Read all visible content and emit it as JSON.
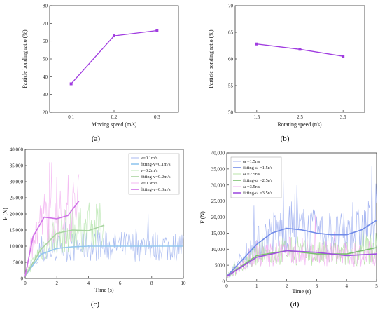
{
  "chart_data": [
    {
      "type": "line",
      "caption": "(a)",
      "xlabel": "Moving speed (m/s)",
      "ylabel": "Particle bonding ratio (%)",
      "xlim": [
        0.05,
        0.35
      ],
      "ylim": [
        20,
        80
      ],
      "xticks": [
        "0.1",
        "0.2",
        "0.3"
      ],
      "yticks": [
        "20",
        "30",
        "40",
        "50",
        "60",
        "70",
        "80"
      ],
      "x": [
        0.1,
        0.2,
        0.3
      ],
      "values": [
        36,
        63,
        66
      ],
      "color": "#a03ce0"
    },
    {
      "type": "line",
      "caption": "(b)",
      "xlabel": "Rotating speed (r/s)",
      "ylabel": "Particle bonding ratio (%)",
      "xlim": [
        1.0,
        4.0
      ],
      "ylim": [
        50,
        70
      ],
      "xticks": [
        "1.5",
        "2.5",
        "3.5"
      ],
      "yticks": [
        "50",
        "55",
        "60",
        "65",
        "70"
      ],
      "x": [
        1.5,
        2.5,
        3.5
      ],
      "values": [
        62.8,
        61.8,
        60.5
      ],
      "color": "#a03ce0"
    },
    {
      "type": "line",
      "caption": "(c)",
      "xlabel": "Time (s)",
      "ylabel": "F (N)",
      "xlim": [
        0,
        10
      ],
      "ylim": [
        0,
        40000
      ],
      "xticks": [
        "0",
        "2",
        "4",
        "6",
        "8",
        "10"
      ],
      "yticks": [
        "0",
        "5000",
        "10,000",
        "15,000",
        "20,000",
        "25,000",
        "30,000",
        "35,000",
        "40,000"
      ],
      "series": [
        {
          "name": "v=0.1m/s",
          "color": "#9fb3ee",
          "style": "noisy",
          "xmax": 10
        },
        {
          "name": "fitting-v=0.1m/s",
          "color": "#93c7ee",
          "style": "fit",
          "xmax": 10,
          "x": [
            0,
            1,
            2,
            3,
            4,
            5,
            6,
            7,
            8,
            9,
            10
          ],
          "values": [
            800,
            7500,
            9300,
            9800,
            10000,
            10000,
            10000,
            10000,
            10000,
            10000,
            10000
          ]
        },
        {
          "name": "v=0.2m/s",
          "color": "#b8e6b0",
          "style": "noisy",
          "xmax": 5
        },
        {
          "name": "fitting-v=0.2m/s",
          "color": "#a8d4a0",
          "style": "fit",
          "xmax": 5,
          "x": [
            0,
            1,
            2,
            3,
            4,
            5
          ],
          "values": [
            800,
            9000,
            14000,
            15000,
            14800,
            16500
          ]
        },
        {
          "name": "v=0.3m/s",
          "color": "#f2b0f0",
          "style": "noisy",
          "xmax": 3.4
        },
        {
          "name": "fitting-v=0.3m/s",
          "color": "#d070e8",
          "style": "fit",
          "xmax": 3.4,
          "x": [
            0,
            0.5,
            1.2,
            2.0,
            2.7,
            3.4
          ],
          "values": [
            800,
            13000,
            19000,
            18500,
            19500,
            24000
          ]
        }
      ]
    },
    {
      "type": "line",
      "caption": "(d)",
      "xlabel": "Time (s)",
      "ylabel": "F (N)",
      "xlim": [
        0,
        5
      ],
      "ylim": [
        0,
        40000
      ],
      "xticks": [
        "0",
        "1",
        "2",
        "3",
        "4",
        "5"
      ],
      "yticks": [
        "0",
        "5000",
        "10,000",
        "15,000",
        "20,000",
        "25,000",
        "30,000",
        "35,000",
        "40,000"
      ],
      "series": [
        {
          "name": "ω =1.5r/s",
          "color": "#9aabf0",
          "style": "noisy",
          "xmax": 5
        },
        {
          "name": "fitting-ω =1.5r/s",
          "color": "#6f8ae8",
          "style": "fit",
          "xmax": 5,
          "x": [
            0,
            0.5,
            1,
            1.5,
            2,
            2.5,
            3,
            3.5,
            4,
            4.5,
            5
          ],
          "values": [
            1500,
            6500,
            11500,
            15000,
            16500,
            16000,
            15000,
            14500,
            14500,
            16000,
            19000
          ]
        },
        {
          "name": "ω =2.5r/s",
          "color": "#b0e0a0",
          "style": "noisy",
          "xmax": 5
        },
        {
          "name": "fitting-ω =2.5r/s",
          "color": "#7cc070",
          "style": "fit",
          "xmax": 5,
          "x": [
            0,
            1,
            2,
            3,
            4,
            5
          ],
          "values": [
            1500,
            8000,
            9500,
            8500,
            8500,
            10500
          ]
        },
        {
          "name": "ω =3.5r/s",
          "color": "#f0a8f0",
          "style": "noisy",
          "xmax": 5
        },
        {
          "name": "fitting-ω =3.5r/s",
          "color": "#a050e0",
          "style": "fit",
          "xmax": 5,
          "x": [
            0,
            1,
            2,
            3,
            4,
            5
          ],
          "values": [
            1500,
            7500,
            9500,
            9000,
            8000,
            8500
          ]
        }
      ]
    }
  ]
}
